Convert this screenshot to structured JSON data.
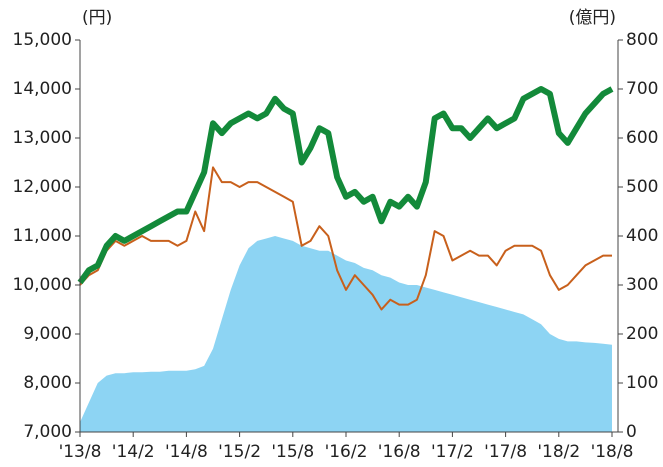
{
  "chart_data": {
    "type": "line",
    "y_label": "(円)",
    "y2_label": "(億円)",
    "categories": [
      "'13/8",
      null,
      null,
      null,
      null,
      null,
      "'14/2",
      null,
      null,
      null,
      null,
      null,
      "'14/8",
      null,
      null,
      null,
      null,
      null,
      "'15/2",
      null,
      null,
      null,
      null,
      null,
      "'15/8",
      null,
      null,
      null,
      null,
      null,
      "'16/2",
      null,
      null,
      null,
      null,
      null,
      "'16/8",
      null,
      null,
      null,
      null,
      null,
      "'17/2",
      null,
      null,
      null,
      null,
      null,
      "'17/8",
      null,
      null,
      null,
      null,
      null,
      "'18/2",
      null,
      null,
      null,
      null,
      null,
      "'18/8"
    ],
    "ylim": [
      7000,
      15000
    ],
    "yticks": [
      {
        "value": 7000,
        "label": "7,000"
      },
      {
        "value": 8000,
        "label": "8,000"
      },
      {
        "value": 9000,
        "label": "9,000"
      },
      {
        "value": 10000,
        "label": "10,000"
      },
      {
        "value": 11000,
        "label": "11,000"
      },
      {
        "value": 12000,
        "label": "12,000"
      },
      {
        "value": 13000,
        "label": "13,000"
      },
      {
        "value": 14000,
        "label": "14,000"
      },
      {
        "value": 15000,
        "label": "15,000"
      }
    ],
    "y2lim": [
      0,
      800
    ],
    "y2ticks": [
      0,
      100,
      200,
      300,
      400,
      500,
      600,
      700,
      800
    ],
    "series": [
      {
        "kind": "area",
        "axis": "y2",
        "color": "#8dd4f3",
        "values": [
          20,
          60,
          100,
          115,
          120,
          120,
          122,
          122,
          123,
          123,
          125,
          125,
          125,
          128,
          135,
          170,
          230,
          290,
          340,
          375,
          390,
          395,
          400,
          395,
          390,
          380,
          375,
          370,
          370,
          360,
          350,
          345,
          335,
          330,
          320,
          315,
          305,
          300,
          300,
          295,
          290,
          285,
          280,
          275,
          270,
          265,
          260,
          255,
          250,
          245,
          240,
          230,
          220,
          200,
          190,
          185,
          185,
          183,
          182,
          180,
          178
        ]
      },
      {
        "kind": "line",
        "color": "#c8601c",
        "width": 2,
        "values": [
          10000,
          10200,
          10300,
          10700,
          10900,
          10800,
          10900,
          11000,
          10900,
          10900,
          10900,
          10800,
          10900,
          11500,
          11100,
          12400,
          12100,
          12100,
          12000,
          12100,
          12100,
          12000,
          11900,
          11800,
          11700,
          10800,
          10900,
          11200,
          11000,
          10300,
          9900,
          10200,
          10000,
          9800,
          9500,
          9700,
          9600,
          9600,
          9700,
          10200,
          11100,
          11000,
          10500,
          10600,
          10700,
          10600,
          10600,
          10400,
          10700,
          10800,
          10800,
          10800,
          10700,
          10200,
          9900,
          10000,
          10200,
          10400,
          10500,
          10600,
          10600
        ]
      },
      {
        "kind": "line",
        "color": "#138a3a",
        "width": 6,
        "values": [
          10050,
          10300,
          10400,
          10800,
          11000,
          10900,
          11000,
          11100,
          11200,
          11300,
          11400,
          11500,
          11500,
          11900,
          12300,
          13300,
          13100,
          13300,
          13400,
          13500,
          13400,
          13500,
          13800,
          13600,
          13500,
          12500,
          12800,
          13200,
          13100,
          12200,
          11800,
          11900,
          11700,
          11800,
          11300,
          11700,
          11600,
          11800,
          11600,
          12100,
          13400,
          13500,
          13200,
          13200,
          13000,
          13200,
          13400,
          13200,
          13300,
          13400,
          13800,
          13900,
          14000,
          13900,
          13100,
          12900,
          13200,
          13500,
          13700,
          13900,
          14000
        ]
      }
    ]
  }
}
